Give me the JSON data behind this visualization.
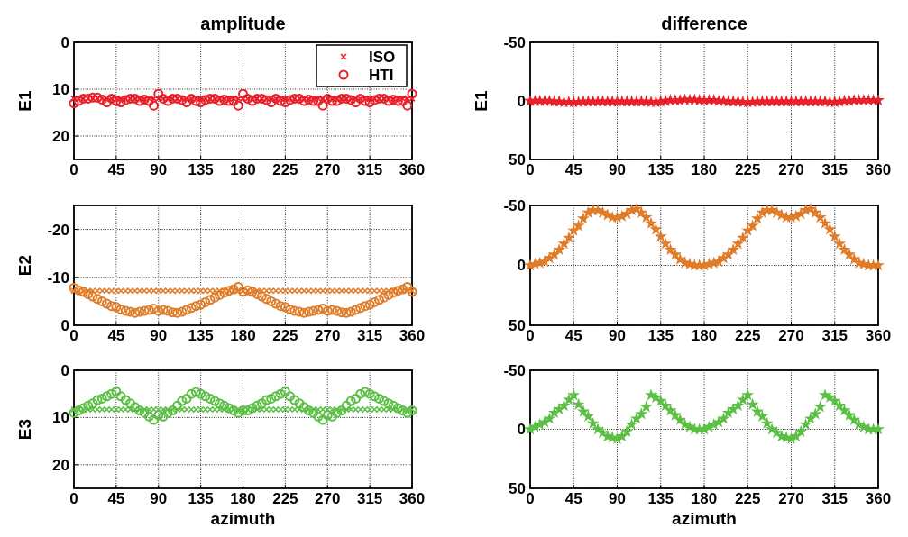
{
  "chart_data": [
    {
      "type": "scatter",
      "title": "amplitude",
      "ylabel": "E1",
      "x": [
        0,
        5,
        10,
        15,
        20,
        25,
        30,
        35,
        40,
        45,
        50,
        55,
        60,
        65,
        70,
        75,
        80,
        85,
        90,
        95,
        100,
        105,
        110,
        115,
        120,
        125,
        130,
        135,
        140,
        145,
        150,
        155,
        160,
        165,
        170,
        175,
        180,
        185,
        190,
        195,
        200,
        205,
        210,
        215,
        220,
        225,
        230,
        235,
        240,
        245,
        250,
        255,
        260,
        265,
        270,
        275,
        280,
        285,
        290,
        295,
        300,
        305,
        310,
        315,
        320,
        325,
        330,
        335,
        340,
        345,
        350,
        355,
        360
      ],
      "xlim": [
        0,
        360
      ],
      "xticks": [
        0,
        45,
        90,
        135,
        180,
        225,
        270,
        315,
        360
      ],
      "ylim": [
        25,
        0
      ],
      "yticks": [
        0,
        10,
        20
      ],
      "grid": true,
      "legend": "top right",
      "series": [
        {
          "name": "ISO",
          "color": "#e8202a",
          "marker": "cross",
          "values": [
            12,
            12,
            12,
            12,
            12,
            12,
            12,
            12,
            12,
            12,
            12,
            12,
            12,
            12,
            12,
            12,
            12,
            12,
            12,
            12,
            12,
            12,
            12,
            12,
            12,
            12,
            12,
            12,
            12,
            12,
            12,
            12,
            12,
            12,
            12,
            12,
            12,
            12,
            12,
            12,
            12,
            12,
            12,
            12,
            12,
            12,
            12,
            12,
            12,
            12,
            12,
            12,
            12,
            12,
            12,
            12,
            12,
            12,
            12,
            12,
            12,
            12,
            12,
            12,
            12,
            12,
            12,
            12,
            12,
            12,
            12,
            12,
            12
          ]
        },
        {
          "name": "HTI",
          "color": "#e8202a",
          "marker": "circle",
          "values": [
            13,
            12.5,
            12,
            12,
            11.8,
            11.8,
            12.2,
            12.8,
            12,
            12.5,
            12.8,
            12.3,
            12,
            12,
            12.5,
            12.2,
            12.5,
            13.5,
            11,
            12,
            12.5,
            12,
            12,
            12.3,
            12.8,
            12,
            12.5,
            12.8,
            12.3,
            12,
            12,
            12.5,
            12.2,
            12.5,
            12.5,
            13.5,
            11,
            12,
            12.5,
            12,
            12,
            12.3,
            12.8,
            12,
            12.5,
            12.8,
            12.3,
            12,
            12,
            12.5,
            12.2,
            12.5,
            12.5,
            13.5,
            12,
            12.5,
            12.5,
            12,
            12,
            12.3,
            12.8,
            12,
            12.5,
            12.8,
            12.3,
            12,
            12,
            12.5,
            12.2,
            12.5,
            12.5,
            13.5,
            11
          ]
        }
      ]
    },
    {
      "type": "scatter",
      "title": "difference",
      "ylabel": "E1",
      "x": [
        0,
        5,
        10,
        15,
        20,
        25,
        30,
        35,
        40,
        45,
        50,
        55,
        60,
        65,
        70,
        75,
        80,
        85,
        90,
        95,
        100,
        105,
        110,
        115,
        120,
        125,
        130,
        135,
        140,
        145,
        150,
        155,
        160,
        165,
        170,
        175,
        180,
        185,
        190,
        195,
        200,
        205,
        210,
        215,
        220,
        225,
        230,
        235,
        240,
        245,
        250,
        255,
        260,
        265,
        270,
        275,
        280,
        285,
        290,
        295,
        300,
        305,
        310,
        315,
        320,
        325,
        330,
        335,
        340,
        345,
        350,
        355,
        360
      ],
      "xlim": [
        0,
        360
      ],
      "xticks": [
        0,
        45,
        90,
        135,
        180,
        225,
        270,
        315,
        360
      ],
      "ylim": [
        50,
        -50
      ],
      "yticks": [
        -50,
        0,
        50
      ],
      "grid": true,
      "series": [
        {
          "color": "#e8202a",
          "marker": "star",
          "values": [
            0,
            0,
            0,
            0,
            0,
            0.5,
            0.5,
            1,
            1,
            1,
            1,
            0.5,
            0.5,
            0.5,
            0.5,
            0.5,
            0.5,
            0.5,
            0.5,
            0.5,
            0.5,
            0.5,
            0.5,
            0.5,
            0.5,
            1,
            1,
            0.5,
            0,
            -0.5,
            -0.5,
            -0.5,
            -1,
            -1,
            -1,
            -0.5,
            -0.5,
            -0.5,
            -0.5,
            0,
            0,
            0.5,
            0.5,
            0.5,
            1,
            1,
            1,
            0.5,
            0.5,
            0.5,
            0.5,
            0.5,
            0.5,
            0.5,
            0.5,
            0.5,
            0.5,
            0.5,
            0.5,
            0.5,
            0.5,
            0.5,
            1,
            1,
            0.5,
            0,
            0,
            -0.5,
            -0.5,
            -0.5,
            -0.5,
            -0.5,
            -0.5
          ]
        }
      ]
    },
    {
      "type": "scatter",
      "ylabel": "E2",
      "x": [
        0,
        5,
        10,
        15,
        20,
        25,
        30,
        35,
        40,
        45,
        50,
        55,
        60,
        65,
        70,
        75,
        80,
        85,
        90,
        95,
        100,
        105,
        110,
        115,
        120,
        125,
        130,
        135,
        140,
        145,
        150,
        155,
        160,
        165,
        170,
        175,
        180,
        185,
        190,
        195,
        200,
        205,
        210,
        215,
        220,
        225,
        230,
        235,
        240,
        245,
        250,
        255,
        260,
        265,
        270,
        275,
        280,
        285,
        290,
        295,
        300,
        305,
        310,
        315,
        320,
        325,
        330,
        335,
        340,
        345,
        350,
        355,
        360
      ],
      "xlim": [
        0,
        360
      ],
      "xticks": [
        0,
        45,
        90,
        135,
        180,
        225,
        270,
        315,
        360
      ],
      "ylim": [
        0,
        -25
      ],
      "yticks": [
        -20,
        -10,
        0
      ],
      "grid": true,
      "series": [
        {
          "color": "#e07b28",
          "marker": "cross",
          "values": [
            -7.2,
            -7.2,
            -7.2,
            -7.2,
            -7.2,
            -7.2,
            -7.2,
            -7.2,
            -7.2,
            -7.2,
            -7.2,
            -7.2,
            -7.2,
            -7.2,
            -7.2,
            -7.2,
            -7.2,
            -7.2,
            -7.2,
            -7.2,
            -7.2,
            -7.2,
            -7.2,
            -7.2,
            -7.2,
            -7.2,
            -7.2,
            -7.2,
            -7.2,
            -7.2,
            -7.2,
            -7.2,
            -7.2,
            -7.2,
            -7.2,
            -7.2,
            -7.2,
            -7.2,
            -7.2,
            -7.2,
            -7.2,
            -7.2,
            -7.2,
            -7.2,
            -7.2,
            -7.2,
            -7.2,
            -7.2,
            -7.2,
            -7.2,
            -7.2,
            -7.2,
            -7.2,
            -7.2,
            -7.2,
            -7.2,
            -7.2,
            -7.2,
            -7.2,
            -7.2,
            -7.2,
            -7.2,
            -7.2,
            -7.2,
            -7.2,
            -7.2,
            -7.2,
            -7.2,
            -7.2,
            -7.2,
            -7.2,
            -7.2,
            -7.2
          ]
        },
        {
          "color": "#e07b28",
          "marker": "circle",
          "values": [
            -7.8,
            -7.3,
            -7,
            -6.5,
            -6,
            -5.5,
            -5,
            -4.5,
            -4,
            -3.8,
            -3.3,
            -3,
            -2.8,
            -2.6,
            -2.8,
            -3,
            -3.2,
            -3.5,
            -3,
            -3.2,
            -3,
            -2.7,
            -2.6,
            -2.8,
            -3.2,
            -3.6,
            -4,
            -4.3,
            -4.8,
            -5.3,
            -5.8,
            -6.3,
            -6.8,
            -7.2,
            -7.5,
            -8,
            -7,
            -7.3,
            -7,
            -6.5,
            -6,
            -5.5,
            -5,
            -4.5,
            -4,
            -3.8,
            -3.3,
            -3,
            -2.8,
            -2.6,
            -2.8,
            -3,
            -3.2,
            -3.5,
            -3,
            -3.2,
            -3,
            -2.7,
            -2.6,
            -2.8,
            -3.2,
            -3.6,
            -4,
            -4.3,
            -4.8,
            -5.3,
            -5.8,
            -6.3,
            -6.8,
            -7.2,
            -7.5,
            -8,
            -7
          ]
        }
      ]
    },
    {
      "type": "scatter",
      "x": [
        0,
        5,
        10,
        15,
        20,
        25,
        30,
        35,
        40,
        45,
        50,
        55,
        60,
        65,
        70,
        75,
        80,
        85,
        90,
        95,
        100,
        105,
        110,
        115,
        120,
        125,
        130,
        135,
        140,
        145,
        150,
        155,
        160,
        165,
        170,
        175,
        180,
        185,
        190,
        195,
        200,
        205,
        210,
        215,
        220,
        225,
        230,
        235,
        240,
        245,
        250,
        255,
        260,
        265,
        270,
        275,
        280,
        285,
        290,
        295,
        300,
        305,
        310,
        315,
        320,
        325,
        330,
        335,
        340,
        345,
        350,
        355,
        360
      ],
      "xlim": [
        0,
        360
      ],
      "xticks": [
        0,
        45,
        90,
        135,
        180,
        225,
        270,
        315,
        360
      ],
      "ylim": [
        50,
        -50
      ],
      "yticks": [
        -50,
        0,
        50
      ],
      "grid": true,
      "series": [
        {
          "color": "#e07b28",
          "marker": "star",
          "values": [
            0,
            -1,
            -2,
            -3,
            -6,
            -9,
            -13,
            -18,
            -23,
            -29,
            -33,
            -39,
            -44,
            -46,
            -46,
            -44,
            -42,
            -40,
            -40,
            -41,
            -43,
            -46,
            -47,
            -44,
            -40,
            -35,
            -30,
            -24,
            -18,
            -13,
            -9,
            -5,
            -2,
            -1,
            0,
            0,
            0,
            -1,
            -2,
            -3,
            -6,
            -9,
            -13,
            -18,
            -23,
            -29,
            -33,
            -39,
            -44,
            -46,
            -46,
            -44,
            -42,
            -40,
            -40,
            -41,
            -43,
            -46,
            -47,
            -44,
            -40,
            -35,
            -30,
            -24,
            -18,
            -13,
            -9,
            -5,
            -2,
            -1,
            0,
            0,
            0
          ]
        }
      ]
    },
    {
      "type": "scatter",
      "ylabel": "E3",
      "xlabel": "azimuth",
      "x": [
        0,
        5,
        10,
        15,
        20,
        25,
        30,
        35,
        40,
        45,
        50,
        55,
        60,
        65,
        70,
        75,
        80,
        85,
        90,
        95,
        100,
        105,
        110,
        115,
        120,
        125,
        130,
        135,
        140,
        145,
        150,
        155,
        160,
        165,
        170,
        175,
        180,
        185,
        190,
        195,
        200,
        205,
        210,
        215,
        220,
        225,
        230,
        235,
        240,
        245,
        250,
        255,
        260,
        265,
        270,
        275,
        280,
        285,
        290,
        295,
        300,
        305,
        310,
        315,
        320,
        325,
        330,
        335,
        340,
        345,
        350,
        355,
        360
      ],
      "xlim": [
        0,
        360
      ],
      "xticks": [
        0,
        45,
        90,
        135,
        180,
        225,
        270,
        315,
        360
      ],
      "ylim": [
        25,
        0
      ],
      "yticks": [
        0,
        10,
        20
      ],
      "grid": true,
      "series": [
        {
          "color": "#5cbf45",
          "marker": "cross",
          "values": [
            8.3,
            8.3,
            8.3,
            8.3,
            8.3,
            8.3,
            8.3,
            8.3,
            8.3,
            8.3,
            8.3,
            8.3,
            8.3,
            8.3,
            8.3,
            8.3,
            8.3,
            8.3,
            8.3,
            8.3,
            8.3,
            8.3,
            8.3,
            8.3,
            8.3,
            8.3,
            8.3,
            8.3,
            8.3,
            8.3,
            8.3,
            8.3,
            8.3,
            8.3,
            8.3,
            8.3,
            8.3,
            8.3,
            8.3,
            8.3,
            8.3,
            8.3,
            8.3,
            8.3,
            8.3,
            8.3,
            8.3,
            8.3,
            8.3,
            8.3,
            8.3,
            8.3,
            8.3,
            8.3,
            8.3,
            8.3,
            8.3,
            8.3,
            8.3,
            8.3,
            8.3,
            8.3,
            8.3,
            8.3,
            8.3,
            8.3,
            8.3,
            8.3,
            8.3,
            8.3,
            8.3,
            8.3,
            8.3
          ]
        },
        {
          "color": "#5cbf45",
          "marker": "circle",
          "values": [
            9,
            8.5,
            8,
            7.5,
            7,
            6.3,
            6,
            5.5,
            5,
            4.5,
            5.5,
            6.3,
            7,
            7.8,
            8.5,
            9,
            9.8,
            10.5,
            9.5,
            9.8,
            9,
            8.5,
            7.5,
            6.5,
            6,
            5,
            4.6,
            5,
            5.5,
            6,
            6.5,
            7,
            7.5,
            8,
            8.5,
            9,
            8.5,
            8.5,
            8,
            7.5,
            7,
            6.3,
            6,
            5.5,
            5,
            4.5,
            5.5,
            6.3,
            7,
            7.8,
            8.5,
            9,
            9.8,
            10.5,
            9.5,
            9.8,
            9,
            8.5,
            7.5,
            6.5,
            6,
            5,
            4.6,
            5,
            5.5,
            6,
            6.5,
            7,
            7.5,
            8,
            8.5,
            9,
            8.5
          ]
        }
      ]
    },
    {
      "type": "scatter",
      "xlabel": "azimuth",
      "x": [
        0,
        5,
        10,
        15,
        20,
        25,
        30,
        35,
        40,
        45,
        50,
        55,
        60,
        65,
        70,
        75,
        80,
        85,
        90,
        95,
        100,
        105,
        110,
        115,
        120,
        125,
        130,
        135,
        140,
        145,
        150,
        155,
        160,
        165,
        170,
        175,
        180,
        185,
        190,
        195,
        200,
        205,
        210,
        215,
        220,
        225,
        230,
        235,
        240,
        245,
        250,
        255,
        260,
        265,
        270,
        275,
        280,
        285,
        290,
        295,
        300,
        305,
        310,
        315,
        320,
        325,
        330,
        335,
        340,
        345,
        350,
        355,
        360
      ],
      "xlim": [
        0,
        360
      ],
      "xticks": [
        0,
        45,
        90,
        135,
        180,
        225,
        270,
        315,
        360
      ],
      "ylim": [
        50,
        -50
      ],
      "yticks": [
        -50,
        0,
        50
      ],
      "grid": true,
      "series": [
        {
          "color": "#5cbf45",
          "marker": "star",
          "values": [
            0,
            -2,
            -4,
            -6,
            -9,
            -14,
            -17,
            -20,
            -25,
            -29,
            -21,
            -15,
            -11,
            -5,
            0,
            3,
            6,
            7,
            8,
            6,
            2,
            -4,
            -9,
            -13,
            -19,
            -29,
            -27,
            -24,
            -20,
            -16,
            -12,
            -8,
            -4,
            -2,
            0,
            0,
            0,
            -2,
            -4,
            -6,
            -9,
            -14,
            -17,
            -20,
            -25,
            -29,
            -21,
            -15,
            -11,
            -5,
            0,
            3,
            6,
            7,
            8,
            6,
            2,
            -4,
            -9,
            -13,
            -19,
            -29,
            -27,
            -24,
            -20,
            -16,
            -12,
            -8,
            -4,
            -2,
            0,
            0,
            0
          ]
        }
      ]
    }
  ]
}
